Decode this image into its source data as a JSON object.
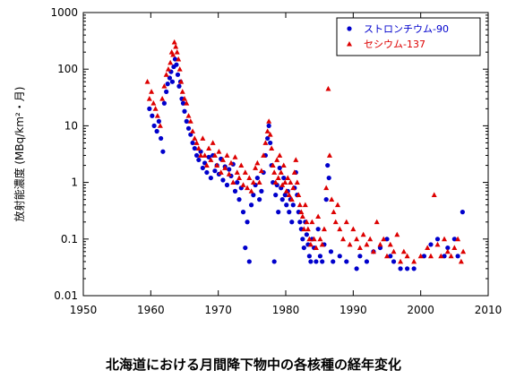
{
  "caption": "北海道における月間降下物中の各核種の経年変化",
  "chart_data": {
    "type": "scatter",
    "title": "",
    "xlabel": "",
    "ylabel": "放射能濃度 (MBq/km²・月)",
    "xlim": [
      1950,
      2010
    ],
    "ylim": [
      0.01,
      1000
    ],
    "y_scale": "log",
    "x_ticks": [
      1950,
      1960,
      1970,
      1980,
      1990,
      2000,
      2010
    ],
    "y_ticks": [
      0.01,
      0.1,
      1,
      10,
      100,
      1000
    ],
    "y_tick_labels": [
      "0.01",
      "0.1",
      "1",
      "10",
      "100",
      "1000"
    ],
    "grid": false,
    "legend_position": "top-right",
    "series": [
      {
        "name": "ストロンチウム-90",
        "marker": "circle",
        "color": "#0000cc",
        "points": [
          [
            1959.8,
            20
          ],
          [
            1960.2,
            15
          ],
          [
            1960.5,
            10
          ],
          [
            1960.9,
            8
          ],
          [
            1961.2,
            12
          ],
          [
            1961.5,
            6
          ],
          [
            1961.8,
            3.5
          ],
          [
            1962.0,
            25
          ],
          [
            1962.3,
            40
          ],
          [
            1962.5,
            55
          ],
          [
            1962.8,
            70
          ],
          [
            1963.0,
            90
          ],
          [
            1963.2,
            60
          ],
          [
            1963.4,
            110
          ],
          [
            1963.6,
            150
          ],
          [
            1963.8,
            120
          ],
          [
            1964.0,
            80
          ],
          [
            1964.2,
            50
          ],
          [
            1964.4,
            60
          ],
          [
            1964.6,
            30
          ],
          [
            1964.8,
            25
          ],
          [
            1965.0,
            18
          ],
          [
            1965.3,
            12
          ],
          [
            1965.6,
            9
          ],
          [
            1965.9,
            7
          ],
          [
            1966.2,
            5
          ],
          [
            1966.5,
            4
          ],
          [
            1966.8,
            3
          ],
          [
            1967.1,
            2.5
          ],
          [
            1967.4,
            3.5
          ],
          [
            1967.7,
            1.8
          ],
          [
            1968.0,
            2.2
          ],
          [
            1968.3,
            1.5
          ],
          [
            1968.6,
            2.8
          ],
          [
            1968.9,
            1.2
          ],
          [
            1969.2,
            3.0
          ],
          [
            1969.5,
            1.6
          ],
          [
            1969.8,
            2.0
          ],
          [
            1970.1,
            1.4
          ],
          [
            1970.4,
            2.6
          ],
          [
            1970.7,
            1.1
          ],
          [
            1971.0,
            1.9
          ],
          [
            1971.3,
            0.9
          ],
          [
            1971.6,
            1.7
          ],
          [
            1971.9,
            1.3
          ],
          [
            1972.2,
            2.1
          ],
          [
            1972.5,
            0.7
          ],
          [
            1972.8,
            1.0
          ],
          [
            1973.1,
            0.5
          ],
          [
            1973.4,
            0.8
          ],
          [
            1973.7,
            0.3
          ],
          [
            1974.0,
            0.07
          ],
          [
            1974.3,
            0.2
          ],
          [
            1974.6,
            0.04
          ],
          [
            1974.9,
            0.4
          ],
          [
            1975.2,
            0.6
          ],
          [
            1975.5,
            0.9
          ],
          [
            1975.8,
            1.2
          ],
          [
            1976.1,
            0.5
          ],
          [
            1976.4,
            0.7
          ],
          [
            1976.7,
            1.5
          ],
          [
            1977.0,
            3
          ],
          [
            1977.3,
            6
          ],
          [
            1977.5,
            10
          ],
          [
            1977.7,
            5
          ],
          [
            1977.9,
            2
          ],
          [
            1978.1,
            1.0
          ],
          [
            1978.3,
            0.04
          ],
          [
            1978.5,
            0.6
          ],
          [
            1978.7,
            0.9
          ],
          [
            1978.9,
            0.3
          ],
          [
            1979.1,
            1.8
          ],
          [
            1979.3,
            0.8
          ],
          [
            1979.5,
            0.5
          ],
          [
            1979.7,
            1.2
          ],
          [
            1979.9,
            0.6
          ],
          [
            1980.1,
            0.4
          ],
          [
            1980.3,
            0.7
          ],
          [
            1980.5,
            0.3
          ],
          [
            1980.7,
            0.5
          ],
          [
            1980.9,
            0.2
          ],
          [
            1981.1,
            0.4
          ],
          [
            1981.3,
            0.8
          ],
          [
            1981.5,
            1.5
          ],
          [
            1981.7,
            0.6
          ],
          [
            1981.9,
            0.3
          ],
          [
            1982.1,
            0.2
          ],
          [
            1982.3,
            0.15
          ],
          [
            1982.5,
            0.1
          ],
          [
            1982.7,
            0.07
          ],
          [
            1982.9,
            0.2
          ],
          [
            1983.1,
            0.12
          ],
          [
            1983.3,
            0.08
          ],
          [
            1983.5,
            0.05
          ],
          [
            1983.7,
            0.04
          ],
          [
            1983.9,
            0.1
          ],
          [
            1984.2,
            0.07
          ],
          [
            1984.5,
            0.04
          ],
          [
            1984.8,
            0.15
          ],
          [
            1985.1,
            0.05
          ],
          [
            1985.4,
            0.04
          ],
          [
            1985.7,
            0.08
          ],
          [
            1986.0,
            0.5
          ],
          [
            1986.2,
            2.0
          ],
          [
            1986.4,
            1.2
          ],
          [
            1986.7,
            0.06
          ],
          [
            1987.0,
            0.04
          ],
          [
            1988.0,
            0.05
          ],
          [
            1989.0,
            0.04
          ],
          [
            1990.5,
            0.03
          ],
          [
            1991.0,
            0.05
          ],
          [
            1992.0,
            0.04
          ],
          [
            1993.0,
            0.06
          ],
          [
            1994.0,
            0.07
          ],
          [
            1995.0,
            0.1
          ],
          [
            1995.5,
            0.05
          ],
          [
            1996.0,
            0.04
          ],
          [
            1997.0,
            0.03
          ],
          [
            1998.0,
            0.03
          ],
          [
            1999.0,
            0.03
          ],
          [
            2000.5,
            0.05
          ],
          [
            2001.5,
            0.08
          ],
          [
            2002.5,
            0.1
          ],
          [
            2003.5,
            0.05
          ],
          [
            2004.0,
            0.07
          ],
          [
            2005.0,
            0.1
          ],
          [
            2005.5,
            0.05
          ],
          [
            2006.2,
            0.3
          ]
        ]
      },
      {
        "name": "セシウム-137",
        "marker": "triangle",
        "color": "#dd0000",
        "points": [
          [
            1959.5,
            60
          ],
          [
            1959.8,
            30
          ],
          [
            1960.1,
            40
          ],
          [
            1960.4,
            25
          ],
          [
            1960.7,
            20
          ],
          [
            1961.0,
            15
          ],
          [
            1961.4,
            10
          ],
          [
            1961.7,
            30
          ],
          [
            1962.0,
            50
          ],
          [
            1962.3,
            80
          ],
          [
            1962.6,
            100
          ],
          [
            1962.9,
            130
          ],
          [
            1963.1,
            200
          ],
          [
            1963.3,
            180
          ],
          [
            1963.5,
            300
          ],
          [
            1963.7,
            250
          ],
          [
            1963.9,
            200
          ],
          [
            1964.1,
            150
          ],
          [
            1964.3,
            100
          ],
          [
            1964.5,
            60
          ],
          [
            1964.7,
            40
          ],
          [
            1965.0,
            30
          ],
          [
            1965.3,
            25
          ],
          [
            1965.6,
            15
          ],
          [
            1965.9,
            12
          ],
          [
            1966.2,
            8
          ],
          [
            1966.5,
            6
          ],
          [
            1966.8,
            5
          ],
          [
            1967.1,
            4
          ],
          [
            1967.4,
            3
          ],
          [
            1967.7,
            6
          ],
          [
            1968.0,
            3
          ],
          [
            1968.3,
            2
          ],
          [
            1968.6,
            4
          ],
          [
            1968.9,
            2.5
          ],
          [
            1969.2,
            5
          ],
          [
            1969.5,
            3
          ],
          [
            1969.8,
            2
          ],
          [
            1970.1,
            3.5
          ],
          [
            1970.4,
            1.5
          ],
          [
            1970.7,
            2.5
          ],
          [
            1971.0,
            1.8
          ],
          [
            1971.3,
            3
          ],
          [
            1971.6,
            1.4
          ],
          [
            1971.9,
            2.2
          ],
          [
            1972.2,
            1.0
          ],
          [
            1972.5,
            2.8
          ],
          [
            1972.8,
            1.5
          ],
          [
            1973.1,
            1.2
          ],
          [
            1973.4,
            2.0
          ],
          [
            1973.7,
            0.9
          ],
          [
            1974.0,
            1.5
          ],
          [
            1974.3,
            0.8
          ],
          [
            1974.6,
            1.2
          ],
          [
            1974.9,
            0.7
          ],
          [
            1975.2,
            1.0
          ],
          [
            1975.5,
            1.8
          ],
          [
            1975.8,
            2.2
          ],
          [
            1976.1,
            1.0
          ],
          [
            1976.4,
            1.6
          ],
          [
            1976.7,
            3
          ],
          [
            1977.0,
            5
          ],
          [
            1977.3,
            8
          ],
          [
            1977.5,
            12
          ],
          [
            1977.7,
            7
          ],
          [
            1977.9,
            4
          ],
          [
            1978.1,
            2
          ],
          [
            1978.3,
            1.5
          ],
          [
            1978.5,
            1.0
          ],
          [
            1978.7,
            2.5
          ],
          [
            1978.9,
            1.2
          ],
          [
            1979.1,
            3
          ],
          [
            1979.3,
            1.5
          ],
          [
            1979.5,
            0.9
          ],
          [
            1979.7,
            2
          ],
          [
            1979.9,
            1.0
          ],
          [
            1980.1,
            0.7
          ],
          [
            1980.3,
            1.2
          ],
          [
            1980.5,
            0.6
          ],
          [
            1980.7,
            1.0
          ],
          [
            1980.9,
            0.5
          ],
          [
            1981.1,
            0.8
          ],
          [
            1981.3,
            1.5
          ],
          [
            1981.5,
            2.5
          ],
          [
            1981.7,
            1.0
          ],
          [
            1981.9,
            0.6
          ],
          [
            1982.1,
            0.4
          ],
          [
            1982.3,
            0.3
          ],
          [
            1982.5,
            0.25
          ],
          [
            1982.7,
            0.15
          ],
          [
            1982.9,
            0.4
          ],
          [
            1983.1,
            0.2
          ],
          [
            1983.3,
            0.15
          ],
          [
            1983.5,
            0.1
          ],
          [
            1983.7,
            0.08
          ],
          [
            1983.9,
            0.2
          ],
          [
            1984.2,
            0.1
          ],
          [
            1984.5,
            0.07
          ],
          [
            1984.8,
            0.25
          ],
          [
            1985.1,
            0.1
          ],
          [
            1985.4,
            0.08
          ],
          [
            1985.7,
            0.15
          ],
          [
            1986.0,
            0.8
          ],
          [
            1986.3,
            45
          ],
          [
            1986.5,
            3
          ],
          [
            1986.8,
            0.5
          ],
          [
            1987.1,
            0.3
          ],
          [
            1987.4,
            0.2
          ],
          [
            1987.7,
            0.4
          ],
          [
            1988.0,
            0.15
          ],
          [
            1988.5,
            0.1
          ],
          [
            1989.0,
            0.2
          ],
          [
            1989.5,
            0.08
          ],
          [
            1990.0,
            0.15
          ],
          [
            1990.5,
            0.1
          ],
          [
            1991.0,
            0.07
          ],
          [
            1991.5,
            0.12
          ],
          [
            1992.0,
            0.08
          ],
          [
            1992.5,
            0.1
          ],
          [
            1993.0,
            0.06
          ],
          [
            1993.5,
            0.2
          ],
          [
            1994.0,
            0.08
          ],
          [
            1994.5,
            0.1
          ],
          [
            1995.0,
            0.05
          ],
          [
            1995.5,
            0.08
          ],
          [
            1996.0,
            0.06
          ],
          [
            1996.5,
            0.12
          ],
          [
            1997.0,
            0.04
          ],
          [
            1997.5,
            0.06
          ],
          [
            1998.0,
            0.05
          ],
          [
            1999.0,
            0.04
          ],
          [
            2000.0,
            0.05
          ],
          [
            2001.0,
            0.07
          ],
          [
            2001.5,
            0.05
          ],
          [
            2002.0,
            0.6
          ],
          [
            2002.5,
            0.08
          ],
          [
            2003.0,
            0.05
          ],
          [
            2003.5,
            0.1
          ],
          [
            2004.0,
            0.06
          ],
          [
            2004.5,
            0.05
          ],
          [
            2005.0,
            0.07
          ],
          [
            2005.5,
            0.1
          ],
          [
            2006.0,
            0.04
          ],
          [
            2006.3,
            0.06
          ]
        ]
      }
    ]
  }
}
